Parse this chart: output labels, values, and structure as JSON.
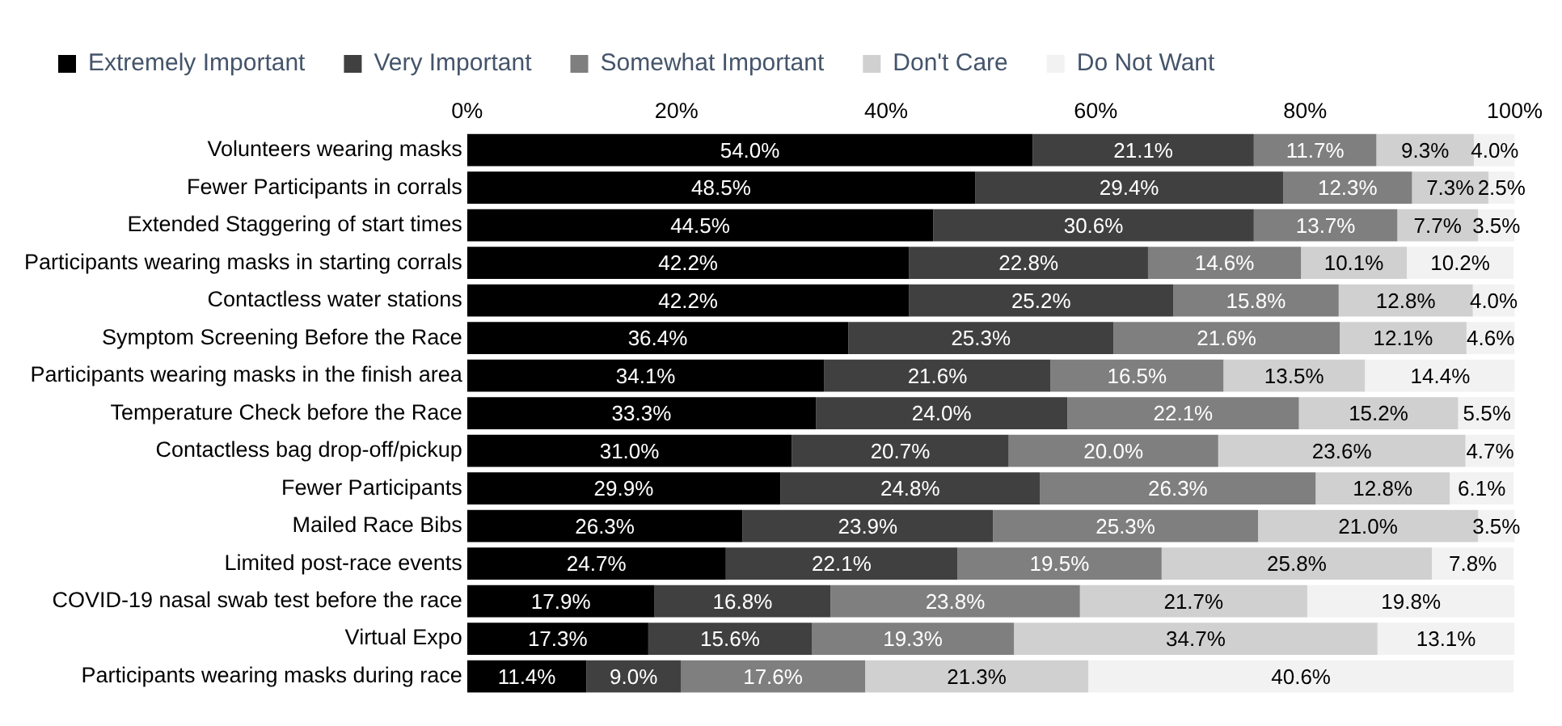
{
  "chart_data": {
    "type": "bar",
    "orientation": "horizontal",
    "stacked": true,
    "legend": "top",
    "xlim": [
      0,
      100
    ],
    "xticks": [
      {
        "value": 0,
        "label": "0%"
      },
      {
        "value": 20,
        "label": "20%"
      },
      {
        "value": 40,
        "label": "40%"
      },
      {
        "value": 60,
        "label": "60%"
      },
      {
        "value": 80,
        "label": "80%"
      },
      {
        "value": 100,
        "label": "100%"
      }
    ],
    "categories": [
      "Volunteers wearing masks",
      "Fewer Participants in corrals",
      "Extended Staggering of start times",
      "Participants wearing masks in starting corrals",
      "Contactless water stations",
      "Symptom Screening Before the Race",
      "Participants wearing masks in the finish area",
      "Temperature Check before the Race",
      "Contactless bag drop-off/pickup",
      "Fewer Participants",
      "Mailed Race Bibs",
      "Limited post-race events",
      "COVID-19 nasal swab test before the race",
      "Virtual Expo",
      "Participants wearing masks during race"
    ],
    "series": [
      {
        "name": "Extremely Important",
        "color": "#000000",
        "values": [
          54.0,
          48.5,
          44.5,
          42.2,
          42.2,
          36.4,
          34.1,
          33.3,
          31.0,
          29.9,
          26.3,
          24.7,
          17.9,
          17.3,
          11.4
        ],
        "value_labels": [
          "54.0%",
          "48.5%",
          "44.5%",
          "42.2%",
          "42.2%",
          "36.4%",
          "34.1%",
          "33.3%",
          "31.0%",
          "29.9%",
          "26.3%",
          "24.7%",
          "17.9%",
          "17.3%",
          "11.4%"
        ]
      },
      {
        "name": "Very Important",
        "color": "#404040",
        "values": [
          21.1,
          29.4,
          30.6,
          22.8,
          25.2,
          25.3,
          21.6,
          24.0,
          20.7,
          24.8,
          23.9,
          22.1,
          16.8,
          15.6,
          9.0
        ],
        "value_labels": [
          "21.1%",
          "29.4%",
          "30.6%",
          "22.8%",
          "25.2%",
          "25.3%",
          "21.6%",
          "24.0%",
          "20.7%",
          "24.8%",
          "23.9%",
          "22.1%",
          "16.8%",
          "15.6%",
          "9.0%"
        ]
      },
      {
        "name": "Somewhat Important",
        "color": "#7f7f7f",
        "values": [
          11.7,
          12.3,
          13.7,
          14.6,
          15.8,
          21.6,
          16.5,
          22.1,
          20.0,
          26.3,
          25.3,
          19.5,
          23.8,
          19.3,
          17.6
        ],
        "value_labels": [
          "11.7%",
          "12.3%",
          "13.7%",
          "14.6%",
          "15.8%",
          "21.6%",
          "16.5%",
          "22.1%",
          "20.0%",
          "26.3%",
          "25.3%",
          "19.5%",
          "23.8%",
          "19.3%",
          "17.6%"
        ]
      },
      {
        "name": "Don't Care",
        "color": "#d0d0d0",
        "values": [
          9.3,
          7.3,
          7.7,
          10.1,
          12.8,
          12.1,
          13.5,
          15.2,
          23.6,
          12.8,
          21.0,
          25.8,
          21.7,
          34.7,
          21.3
        ],
        "value_labels": [
          "9.3%",
          "7.3%",
          "7.7%",
          "10.1%",
          "12.8%",
          "12.1%",
          "13.5%",
          "15.2%",
          "23.6%",
          "12.8%",
          "21.0%",
          "25.8%",
          "21.7%",
          "34.7%",
          "21.3%"
        ]
      },
      {
        "name": "Do Not Want",
        "color": "#f2f2f2",
        "values": [
          4.0,
          2.5,
          3.5,
          10.2,
          4.0,
          4.6,
          14.4,
          5.5,
          4.7,
          6.1,
          3.5,
          7.8,
          19.8,
          13.1,
          40.6
        ],
        "value_labels": [
          "4.0%",
          "2.5%",
          "3.5%",
          "10.2%",
          "4.0%",
          "4.6%",
          "14.4%",
          "5.5%",
          "4.7%",
          "6.1%",
          "3.5%",
          "7.8%",
          "19.8%",
          "13.1%",
          "40.6%"
        ]
      }
    ]
  }
}
